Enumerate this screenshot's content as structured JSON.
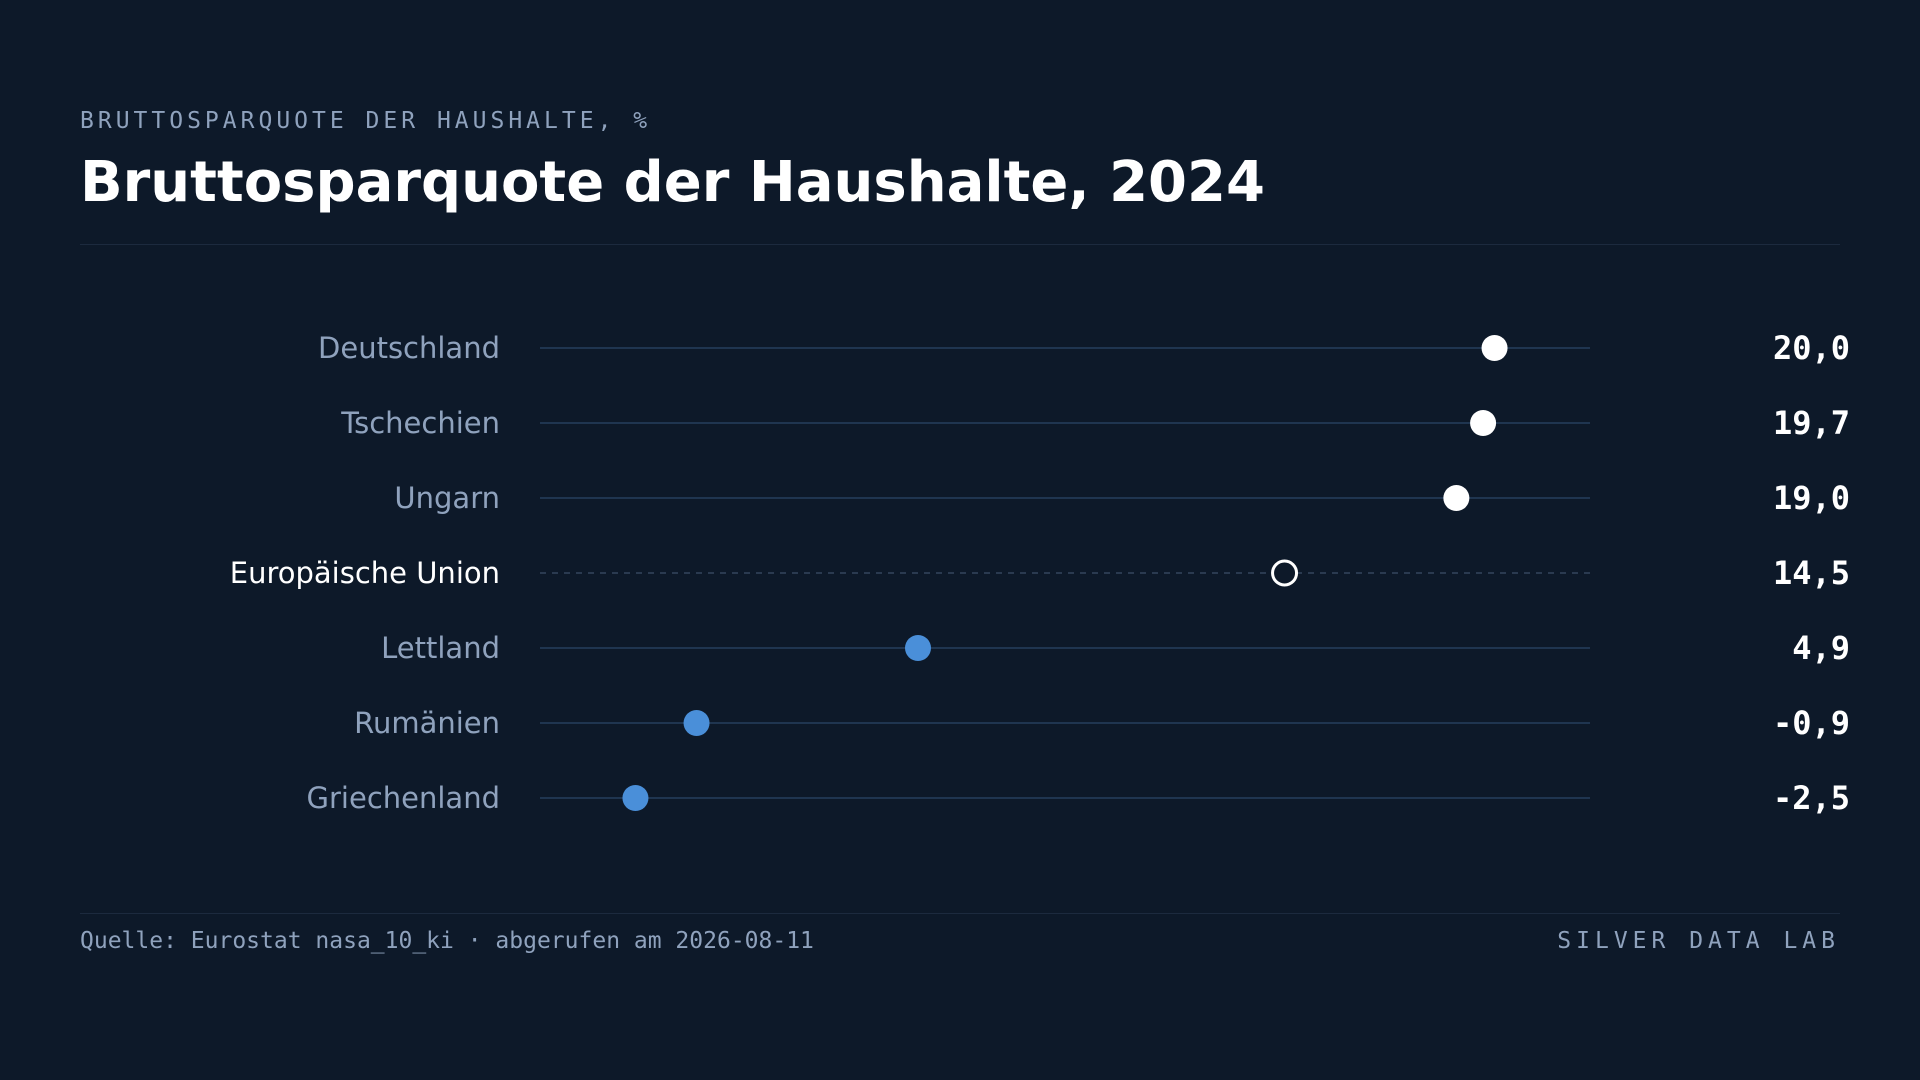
{
  "header": {
    "eyebrow": "BRUTTOSPARQUOTE DER HAUSHALTE, %",
    "title": "Bruttosparquote der Haushalte, 2024"
  },
  "footer": {
    "source": "Quelle: Eurostat nasa_10_ki · abgerufen am 2026-08-11",
    "brand": "SILVER DATA LAB"
  },
  "colors": {
    "background": "#0d1929",
    "highlight": "#ffffff",
    "accent": "#4a8fd9",
    "track": "#1f3550",
    "label": "#8fa2bd"
  },
  "chart_data": {
    "type": "dot",
    "title": "Bruttosparquote der Haushalte, 2024",
    "xlim": [
      -5,
      22.5
    ],
    "categories": [
      "Deutschland",
      "Tschechien",
      "Ungarn",
      "Europäische Union",
      "Lettland",
      "Rumänien",
      "Griechenland"
    ],
    "values": [
      20.0,
      19.7,
      19.0,
      14.5,
      4.9,
      -0.9,
      -2.5
    ],
    "value_labels": [
      "20,0",
      "19,7",
      "19,0",
      "14,5",
      "4,9",
      "-0,9",
      "-2,5"
    ],
    "styles": [
      "top",
      "top",
      "top",
      "reference",
      "low",
      "low",
      "low"
    ]
  }
}
